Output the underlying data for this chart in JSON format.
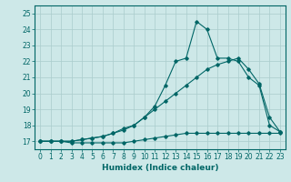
{
  "xlabel": "Humidex (Indice chaleur)",
  "ylabel": "",
  "bg_color": "#cde8e8",
  "grid_color": "#aacccc",
  "line_color": "#006666",
  "xlim": [
    -0.5,
    23.5
  ],
  "ylim": [
    16.5,
    25.5
  ],
  "yticks": [
    17,
    18,
    19,
    20,
    21,
    22,
    23,
    24,
    25
  ],
  "xticks": [
    0,
    1,
    2,
    3,
    4,
    5,
    6,
    7,
    8,
    9,
    10,
    11,
    12,
    13,
    14,
    15,
    16,
    17,
    18,
    19,
    20,
    21,
    22,
    23
  ],
  "series": [
    [
      17.0,
      17.0,
      17.0,
      16.9,
      16.9,
      16.9,
      16.9,
      16.9,
      16.9,
      17.0,
      17.1,
      17.2,
      17.3,
      17.4,
      17.5,
      17.5,
      17.5,
      17.5,
      17.5,
      17.5,
      17.5,
      17.5,
      17.5,
      17.5
    ],
    [
      17.0,
      17.0,
      17.0,
      17.0,
      17.1,
      17.2,
      17.3,
      17.5,
      17.7,
      18.0,
      18.5,
      19.0,
      19.5,
      20.0,
      20.5,
      21.0,
      21.5,
      21.8,
      22.0,
      22.2,
      21.5,
      20.6,
      18.5,
      17.6
    ],
    [
      17.0,
      17.0,
      17.0,
      17.0,
      17.1,
      17.2,
      17.3,
      17.5,
      17.8,
      18.0,
      18.5,
      19.2,
      20.5,
      22.0,
      22.2,
      24.5,
      24.0,
      22.2,
      22.2,
      22.0,
      21.0,
      20.5,
      18.0,
      17.6
    ]
  ]
}
